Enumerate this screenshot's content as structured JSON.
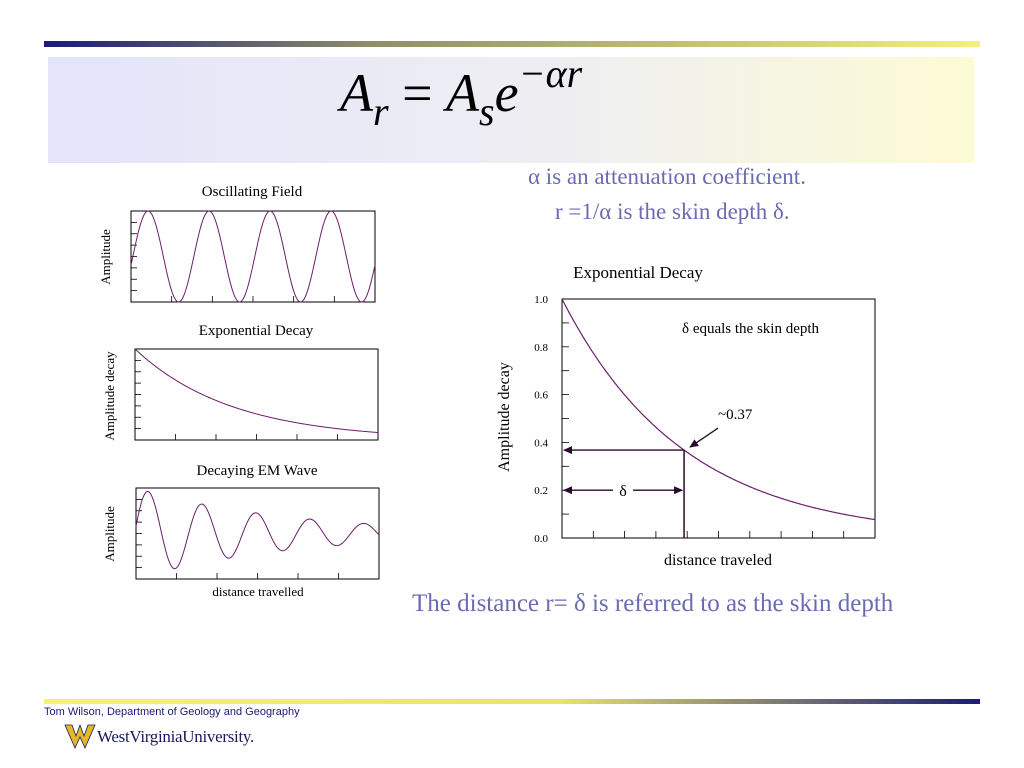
{
  "slide": {
    "formula": {
      "lhs_base": "A",
      "lhs_sub": "r",
      "equals": " = ",
      "rhs_base": "A",
      "rhs_sub": "s",
      "exp_base": "e",
      "exponent": "−αr"
    },
    "notes": [
      "α is an attenuation coefficient.",
      "r =1/α is the skin depth δ."
    ],
    "caption": "The distance r= δ is referred to as the skin depth",
    "footer_credit": "Tom Wilson, Department of Geology and Geography",
    "logo_text": "WestVirginiaUniversity.",
    "colors": {
      "note_text": "#6b6bb2",
      "curve": "#6a1f6a",
      "rule_dark": "#1a1a7a",
      "rule_light": "#f5f07a",
      "band_left": "#e4e4fb",
      "band_right": "#fdfbd4",
      "logo_gold": "#e2b829"
    }
  },
  "chart_data": [
    {
      "type": "line",
      "title": "Oscillating Field",
      "xlabel": "",
      "ylabel": "Amplitude",
      "function": "sin",
      "cycles": 4,
      "ylim": [
        -1,
        1
      ]
    },
    {
      "type": "line",
      "title": "Exponential Decay",
      "xlabel": "",
      "ylabel": "Amplitude decay",
      "function": "exp",
      "ylim": [
        0,
        1
      ]
    },
    {
      "type": "line",
      "title": "Decaying EM Wave",
      "xlabel": "distance travelled",
      "ylabel": "Amplitude",
      "function": "damped-sin",
      "ylim": [
        -1,
        1
      ]
    },
    {
      "type": "line",
      "title": "Exponential Decay",
      "xlabel": "distance traveled",
      "ylabel": "Amplitude decay",
      "ylim": [
        0,
        1
      ],
      "yticks": [
        "0.0",
        "0.2",
        "0.4",
        "0.6",
        "0.8",
        "1.0"
      ],
      "skin_depth_fraction_of_x": 0.39,
      "annotations": {
        "skin_depth_note": "δ equals the skin depth",
        "value_label": "~0.37",
        "delta_label": "δ"
      }
    }
  ]
}
